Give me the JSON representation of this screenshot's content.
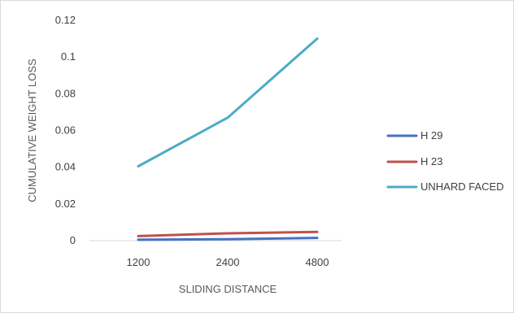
{
  "chart_data": {
    "type": "line",
    "categories": [
      "1200",
      "2400",
      "4800"
    ],
    "xlabel": "SLIDING DISTANCE",
    "ylabel": "CUMULATIVE WEIGHT LOSS",
    "ylim": [
      0,
      0.12
    ],
    "yticks": [
      "0",
      "0.02",
      "0.04",
      "0.06",
      "0.08",
      "0.1",
      "0.12"
    ],
    "grid": false,
    "legend_position": "right",
    "series": [
      {
        "name": "H 29",
        "values": [
          0.0005,
          0.0008,
          0.0015
        ],
        "color": "#4472C4"
      },
      {
        "name": "H 23",
        "values": [
          0.0025,
          0.004,
          0.0048
        ],
        "color": "#C0504D"
      },
      {
        "name": "UNHARD FACED",
        "values": [
          0.0405,
          0.067,
          0.11
        ],
        "color": "#4BACC6"
      }
    ]
  }
}
